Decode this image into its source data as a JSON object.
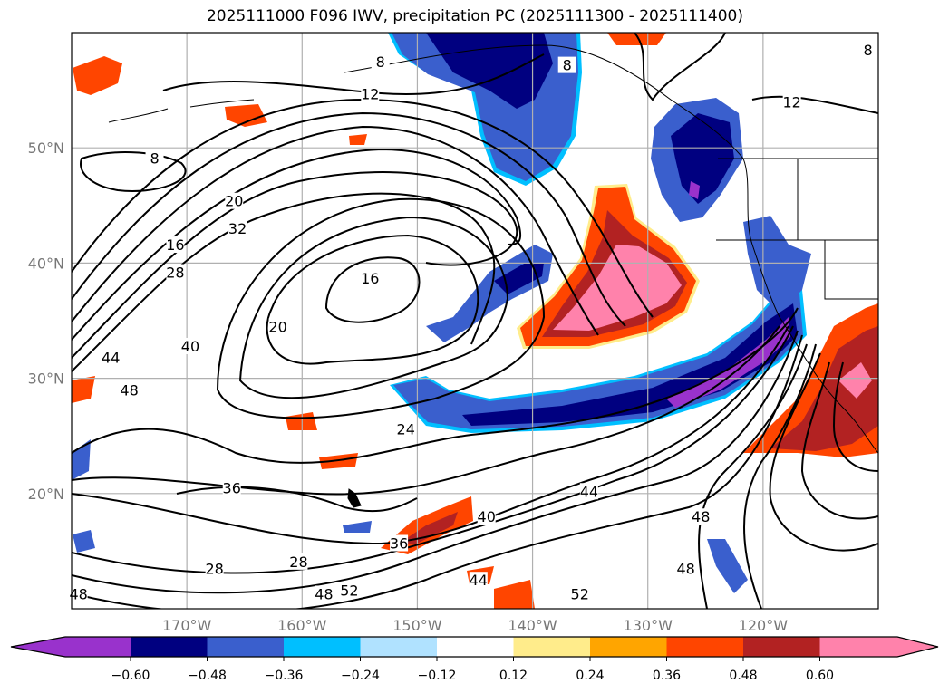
{
  "title": "2025111000 F096 IWV, precipitation PC (2025111300 - 2025111400)",
  "chart_data": {
    "type": "map-contour",
    "title": "2025111000 F096 IWV, precipitation PC (2025111300 - 2025111400)",
    "extent": {
      "lon": [
        -180,
        -110
      ],
      "lat": [
        10,
        60
      ]
    },
    "lon_ticks": [
      {
        "value": -170,
        "label": "170°W"
      },
      {
        "value": -160,
        "label": "160°W"
      },
      {
        "value": -150,
        "label": "150°W"
      },
      {
        "value": -140,
        "label": "140°W"
      },
      {
        "value": -130,
        "label": "130°W"
      },
      {
        "value": -120,
        "label": "120°W"
      }
    ],
    "lat_ticks": [
      {
        "value": 50,
        "label": "50°N"
      },
      {
        "value": 40,
        "label": "40°N"
      },
      {
        "value": 30,
        "label": "30°N"
      },
      {
        "value": 20,
        "label": "20°N"
      }
    ],
    "grid": true,
    "contour_field": "IWV",
    "contour_labels": [
      {
        "text": "12",
        "lon": -154.1,
        "lat": 54.7
      },
      {
        "text": "8",
        "lon": -153.2,
        "lat": 57.5
      },
      {
        "text": "8",
        "lon": -137.0,
        "lat": 57.2
      },
      {
        "text": "12",
        "lon": -117.5,
        "lat": 54.0
      },
      {
        "text": "8",
        "lon": -110.9,
        "lat": 58.5
      },
      {
        "text": "8",
        "lon": -172.8,
        "lat": 49.1
      },
      {
        "text": "20",
        "lon": -165.9,
        "lat": 45.4
      },
      {
        "text": "16",
        "lon": -171.0,
        "lat": 41.6
      },
      {
        "text": "32",
        "lon": -165.6,
        "lat": 43.0
      },
      {
        "text": "28",
        "lon": -171.0,
        "lat": 39.2
      },
      {
        "text": "16",
        "lon": -154.1,
        "lat": 38.7
      },
      {
        "text": "44",
        "lon": -176.6,
        "lat": 31.8
      },
      {
        "text": "40",
        "lon": -169.7,
        "lat": 32.8
      },
      {
        "text": "20",
        "lon": -162.1,
        "lat": 34.5
      },
      {
        "text": "48",
        "lon": -175.0,
        "lat": 29.0
      },
      {
        "text": "24",
        "lon": -151.0,
        "lat": 25.6
      },
      {
        "text": "36",
        "lon": -166.1,
        "lat": 20.5
      },
      {
        "text": "28",
        "lon": -167.6,
        "lat": 13.5
      },
      {
        "text": "28",
        "lon": -160.3,
        "lat": 14.1
      },
      {
        "text": "36",
        "lon": -151.6,
        "lat": 15.7
      },
      {
        "text": "40",
        "lon": -144.0,
        "lat": 18.0
      },
      {
        "text": "44",
        "lon": -135.1,
        "lat": 20.2
      },
      {
        "text": "48",
        "lon": -125.4,
        "lat": 18.0
      },
      {
        "text": "48",
        "lon": -126.7,
        "lat": 13.5
      },
      {
        "text": "44",
        "lon": -144.7,
        "lat": 12.5
      },
      {
        "text": "52",
        "lon": -155.9,
        "lat": 11.6
      },
      {
        "text": "48",
        "lon": -158.1,
        "lat": 11.3
      },
      {
        "text": "52",
        "lon": -135.9,
        "lat": 11.3
      },
      {
        "text": "48",
        "lon": -179.4,
        "lat": 11.3
      }
    ],
    "colorbar": {
      "field": "precipitation PC",
      "levels": [
        -0.6,
        -0.48,
        -0.36,
        -0.24,
        -0.12,
        0.12,
        0.24,
        0.36,
        0.48,
        0.6
      ],
      "tick_labels": [
        "−0.60",
        "−0.48",
        "−0.36",
        "−0.24",
        "−0.12",
        "0.12",
        "0.24",
        "0.36",
        "0.48",
        "0.60"
      ],
      "colors": [
        "#9932CC",
        "#000080",
        "#3A5FCD",
        "#00BFFF",
        "#B0E2FF",
        "#FFFFFF",
        "#FFEC8B",
        "#FFA500",
        "#FF4500",
        "#B22222",
        "#FF82AB"
      ],
      "extend": "both",
      "orientation": "horizontal"
    }
  }
}
